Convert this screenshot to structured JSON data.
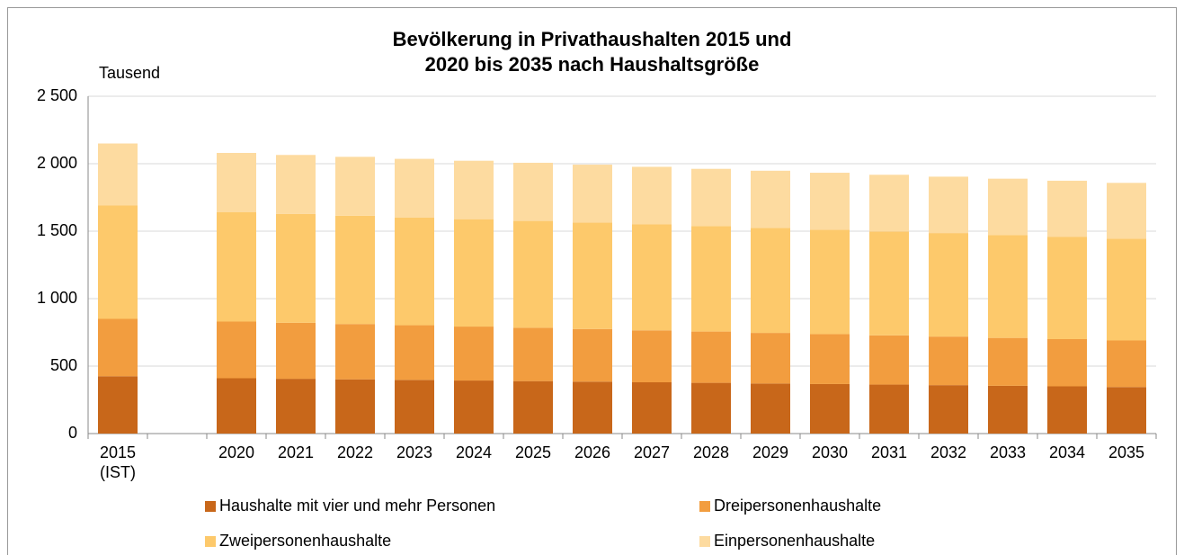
{
  "chart_data": {
    "type": "stacked_bar",
    "title": "Bevölkerung in Privathaushalten 2015 und\n2020 bis 2035 nach Haushaltsgröße",
    "y_label": "Tausend",
    "categories": [
      "2015\n(IST)",
      null,
      "2020",
      "2021",
      "2022",
      "2023",
      "2024",
      "2025",
      "2026",
      "2027",
      "2028",
      "2029",
      "2030",
      "2031",
      "2032",
      "2033",
      "2034",
      "2035"
    ],
    "series": [
      {
        "name": "Haushalte mit vier und mehr Personen",
        "color": "#c8671a",
        "values": [
          425,
          null,
          410,
          406,
          402,
          398,
          393,
          389,
          385,
          380,
          376,
          371,
          367,
          363,
          359,
          354,
          350,
          345
        ]
      },
      {
        "name": "Dreipersonenhaushalte",
        "color": "#f29d3f",
        "values": [
          425,
          null,
          420,
          415,
          410,
          405,
          400,
          395,
          390,
          385,
          380,
          375,
          370,
          365,
          360,
          355,
          350,
          345
        ]
      },
      {
        "name": "Zweipersonenhaushalte",
        "color": "#fdc96b",
        "values": [
          840,
          null,
          810,
          806,
          803,
          799,
          796,
          792,
          789,
          785,
          781,
          778,
          774,
          770,
          767,
          763,
          759,
          755
        ]
      },
      {
        "name": "Einpersonenhaushalte",
        "color": "#fddba0",
        "values": [
          460,
          null,
          440,
          438,
          436,
          434,
          433,
          431,
          429,
          427,
          425,
          424,
          422,
          420,
          418,
          417,
          415,
          413
        ]
      }
    ],
    "ylim": [
      0,
      2500
    ],
    "yticks": [
      0,
      500,
      {
        "value": 1000,
        "label": "1 000"
      },
      {
        "value": 1500,
        "label": "1 500"
      },
      {
        "value": 2000,
        "label": "2 000"
      },
      {
        "value": 2500,
        "label": "2 500"
      }
    ],
    "grid": true
  }
}
